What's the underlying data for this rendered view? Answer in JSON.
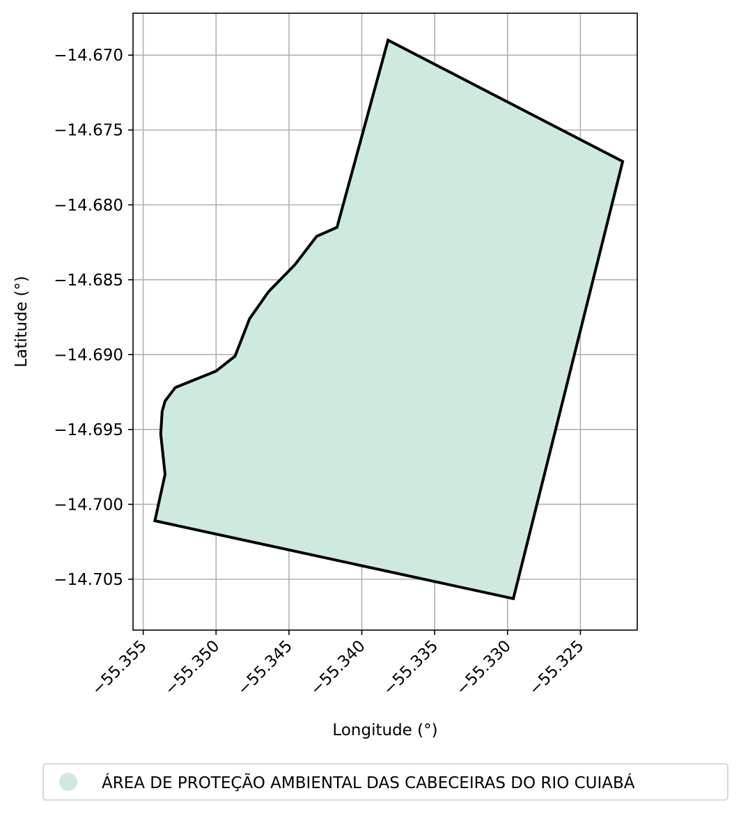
{
  "chart_data": {
    "type": "map",
    "xlabel": "Longitude (°)",
    "ylabel": "Latitude (°)",
    "xlim": [
      -55.3557,
      -55.3211
    ],
    "ylim": [
      -14.7084,
      -14.6672
    ],
    "xticks": [
      -55.355,
      -55.35,
      -55.345,
      -55.34,
      -55.335,
      -55.33,
      -55.325
    ],
    "xtick_labels": [
      "−55.355",
      "−55.350",
      "−55.345",
      "−55.340",
      "−55.335",
      "−55.330",
      "−55.325"
    ],
    "yticks": [
      -14.67,
      -14.675,
      -14.68,
      -14.685,
      -14.69,
      -14.695,
      -14.7,
      -14.705
    ],
    "ytick_labels": [
      "−14.670",
      "−14.675",
      "−14.680",
      "−14.685",
      "−14.690",
      "−14.695",
      "−14.700",
      "−14.705"
    ],
    "grid": true,
    "legend_position": "bottom-center",
    "legend": [
      {
        "label": "ÁREA DE PROTEÇÃO AMBIENTAL DAS CABECEIRAS DO RIO CUIABÁ",
        "color": "#ceeade"
      }
    ],
    "polygon": {
      "fill": "#ceeade",
      "edge": "#000000",
      "coordinates": [
        [
          -55.3382,
          -14.669
        ],
        [
          -55.3221,
          -14.6771
        ],
        [
          -55.3296,
          -14.7063
        ],
        [
          -55.3542,
          -14.7011
        ],
        [
          -55.3535,
          -14.698
        ],
        [
          -55.3538,
          -14.6953
        ],
        [
          -55.3537,
          -14.6938
        ],
        [
          -55.3535,
          -14.6931
        ],
        [
          -55.3528,
          -14.6922
        ],
        [
          -55.35,
          -14.6911
        ],
        [
          -55.3487,
          -14.6901
        ],
        [
          -55.3477,
          -14.6876
        ],
        [
          -55.3464,
          -14.6858
        ],
        [
          -55.3446,
          -14.684
        ],
        [
          -55.3431,
          -14.6821
        ],
        [
          -55.3417,
          -14.6815
        ],
        [
          -55.3382,
          -14.669
        ]
      ]
    }
  }
}
